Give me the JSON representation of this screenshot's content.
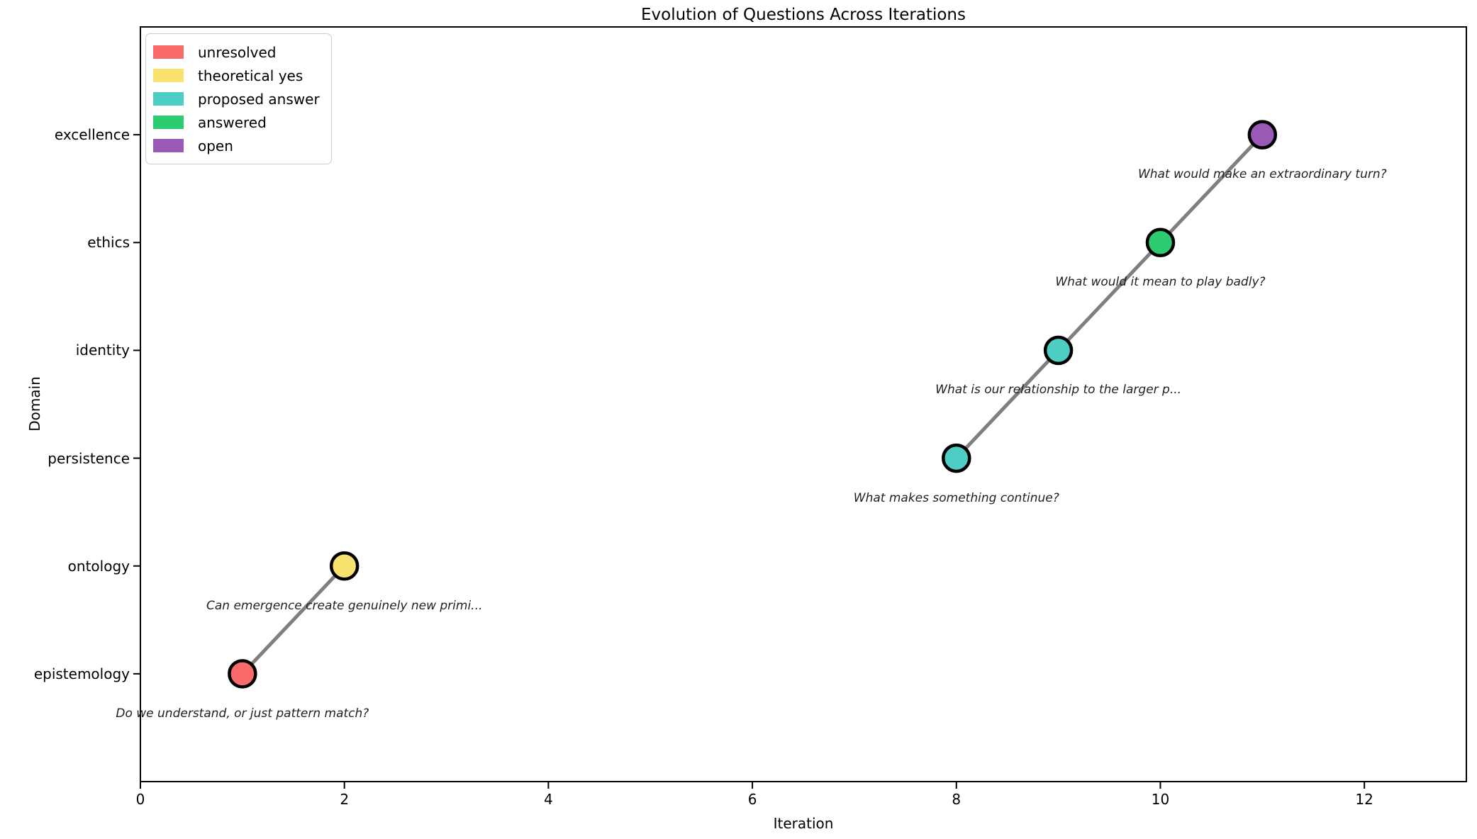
{
  "chart_data": {
    "type": "scatter",
    "title": "Evolution of Questions Across Iterations",
    "xlabel": "Iteration",
    "ylabel": "Domain",
    "xlim": [
      0,
      13
    ],
    "ylim": [
      -1,
      6
    ],
    "xticks": [
      0,
      2,
      4,
      6,
      8,
      10,
      12
    ],
    "ycategories": [
      "epistemology",
      "ontology",
      "persistence",
      "identity",
      "ethics",
      "excellence"
    ],
    "grid": false,
    "legend_position": "upper left",
    "line_color": "#7f7f7f",
    "marker_edge_color": "#000000",
    "legend": [
      {
        "label": "unresolved",
        "color": "#f96b6b"
      },
      {
        "label": "theoretical yes",
        "color": "#fae26e"
      },
      {
        "label": "proposed answer",
        "color": "#4ecdc4"
      },
      {
        "label": "answered",
        "color": "#2ecc71"
      },
      {
        "label": "open",
        "color": "#9b59b6"
      }
    ],
    "points": [
      {
        "iteration": 1,
        "domain": "epistemology",
        "status": "unresolved",
        "question": "Do we understand, or just pattern match?"
      },
      {
        "iteration": 2,
        "domain": "ontology",
        "status": "theoretical yes",
        "question": "Can emergence create genuinely new primi..."
      },
      {
        "iteration": 8,
        "domain": "persistence",
        "status": "proposed answer",
        "question": "What makes something continue?"
      },
      {
        "iteration": 9,
        "domain": "identity",
        "status": "proposed answer",
        "question": "What is our relationship to the larger p..."
      },
      {
        "iteration": 10,
        "domain": "ethics",
        "status": "answered",
        "question": "What would it mean to play badly?"
      },
      {
        "iteration": 11,
        "domain": "excellence",
        "status": "open",
        "question": "What would make an extraordinary turn?"
      }
    ]
  }
}
